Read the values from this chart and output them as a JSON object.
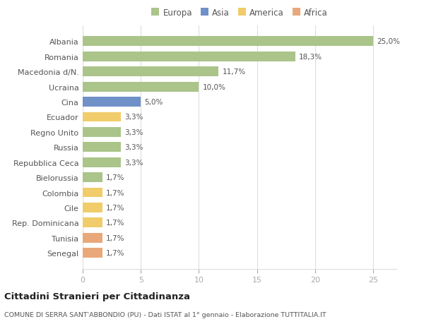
{
  "countries": [
    "Albania",
    "Romania",
    "Macedonia d/N.",
    "Ucraina",
    "Cina",
    "Ecuador",
    "Regno Unito",
    "Russia",
    "Repubblica Ceca",
    "Bielorussia",
    "Colombia",
    "Cile",
    "Rep. Dominicana",
    "Tunisia",
    "Senegal"
  ],
  "values": [
    25.0,
    18.3,
    11.7,
    10.0,
    5.0,
    3.3,
    3.3,
    3.3,
    3.3,
    1.7,
    1.7,
    1.7,
    1.7,
    1.7,
    1.7
  ],
  "labels": [
    "25,0%",
    "18,3%",
    "11,7%",
    "10,0%",
    "5,0%",
    "3,3%",
    "3,3%",
    "3,3%",
    "3,3%",
    "1,7%",
    "1,7%",
    "1,7%",
    "1,7%",
    "1,7%",
    "1,7%"
  ],
  "continents": [
    "Europa",
    "Europa",
    "Europa",
    "Europa",
    "Asia",
    "America",
    "Europa",
    "Europa",
    "Europa",
    "Europa",
    "America",
    "America",
    "America",
    "Africa",
    "Africa"
  ],
  "colors": {
    "Europa": "#aac48a",
    "Asia": "#7090c8",
    "America": "#f0cc6a",
    "Africa": "#e8a87a"
  },
  "legend_order": [
    "Europa",
    "Asia",
    "America",
    "Africa"
  ],
  "xlim": [
    0,
    27
  ],
  "xticks": [
    0,
    5,
    10,
    15,
    20,
    25
  ],
  "title": "Cittadini Stranieri per Cittadinanza",
  "subtitle": "COMUNE DI SERRA SANT'ABBONDIO (PU) - Dati ISTAT al 1° gennaio - Elaborazione TUTTITALIA.IT",
  "bg_color": "#ffffff",
  "plot_bg": "#ffffff",
  "label_color": "#555555",
  "tick_color": "#aaaaaa",
  "grid_color": "#dddddd",
  "value_label_color": "#555555"
}
